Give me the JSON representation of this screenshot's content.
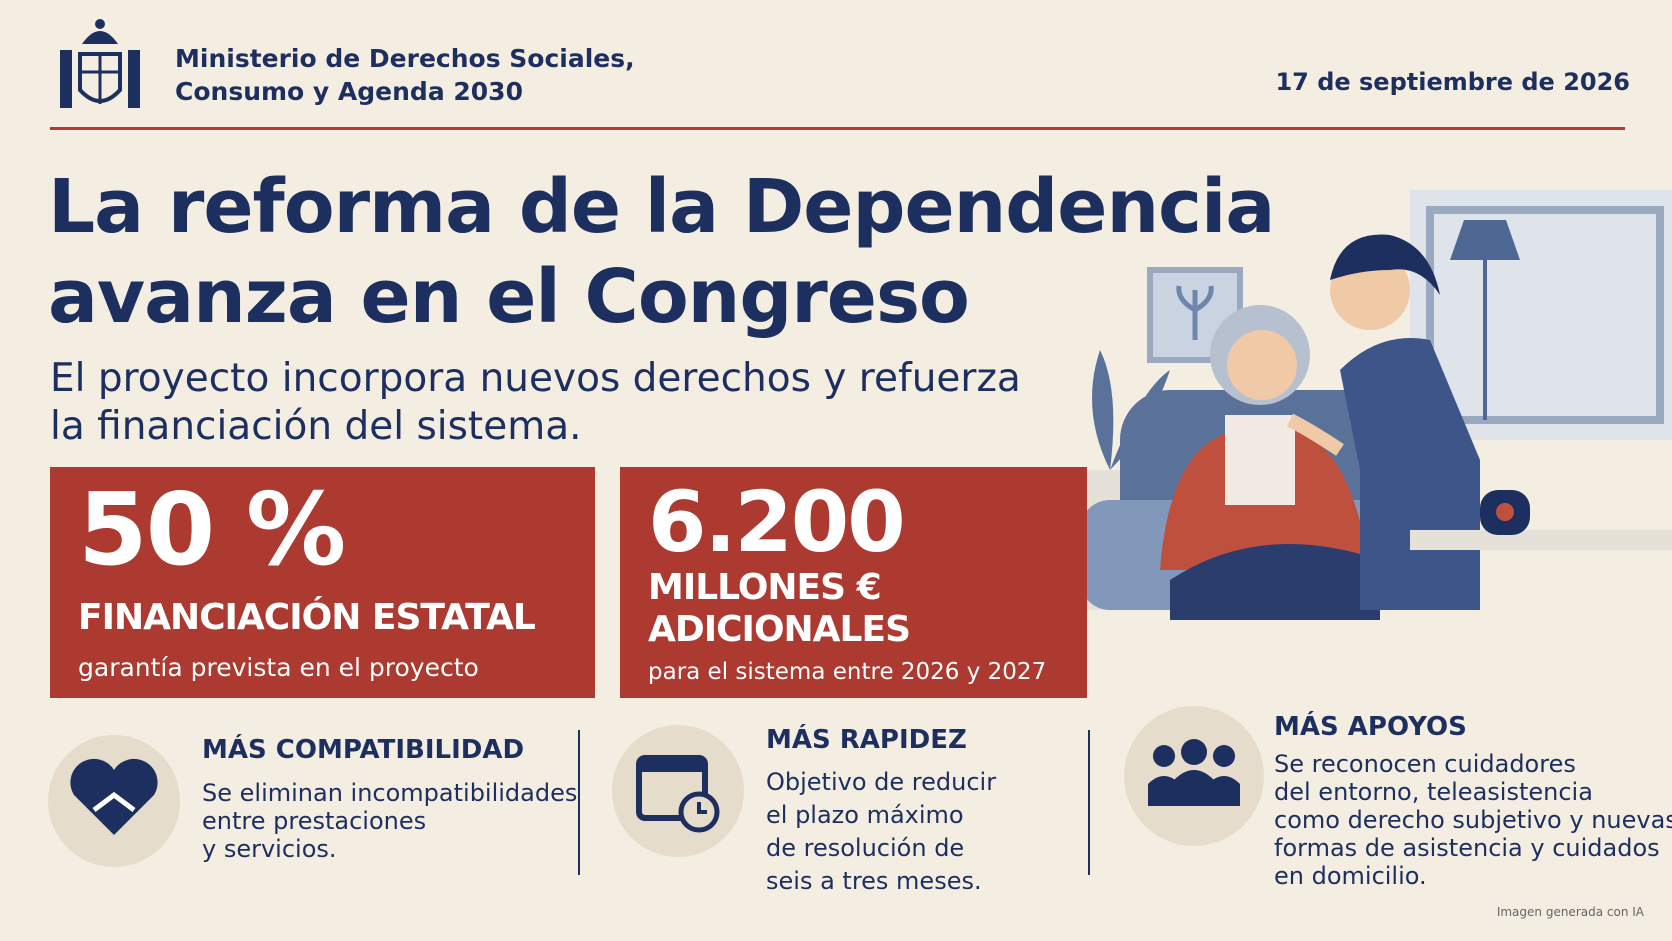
{
  "header": {
    "ministry": [
      "Ministerio de Derechos Sociales,",
      "Consumo y Agenda 2030"
    ],
    "date": "17 de septiembre de 2026"
  },
  "headline": {
    "title": [
      "La reforma de la Dependencia",
      "avanza en el Congreso"
    ],
    "subtitle": [
      "El proyecto incorpora nuevos derechos y refuerza",
      "la financiación del sistema."
    ]
  },
  "stats": [
    {
      "value": "50 %",
      "label": [
        "FINANCIACIÓN ESTATAL"
      ],
      "note": "garantía prevista en el proyecto"
    },
    {
      "value": "6.200",
      "label": [
        "MILLONES €",
        "ADICIONALES"
      ],
      "note": "para el sistema entre 2026 y 2027"
    }
  ],
  "features": [
    {
      "title": "MÁS COMPATIBILIDAD",
      "text": [
        "Se eliminan incompatibilidades",
        "entre prestaciones",
        "y servicios."
      ]
    },
    {
      "title": "MÁS RAPIDEZ",
      "text": [
        "Objetivo de reducir",
        "el plazo máximo",
        "de resolución de",
        "seis a tres meses."
      ]
    },
    {
      "title": "MÁS APOYOS",
      "text": [
        "Se reconocen cuidadores",
        "del entorno, teleasistencia",
        "como derecho subjetivo y nuevas",
        "formas de asistencia y cuidados",
        "en domicilio."
      ]
    }
  ],
  "footer": {
    "credit": "Imagen generada con IA"
  }
}
